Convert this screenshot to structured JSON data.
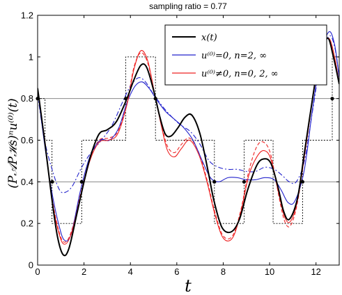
{
  "chart_data": {
    "type": "line",
    "title": "sampling ratio = 0.77",
    "xlabel": "t",
    "ylabel": "(P𝒜Pℋs)ⁿu⁽⁰⁾(t)",
    "xlim": [
      0,
      13
    ],
    "ylim": [
      0,
      1.2
    ],
    "xticks": [
      0,
      2,
      4,
      6,
      8,
      10,
      12
    ],
    "yticks": [
      0,
      0.2,
      0.4,
      0.6,
      0.8,
      1,
      1.2
    ],
    "ytick_labels": [
      "0",
      "0.2",
      "0.4",
      "0.6",
      "0.8",
      "1",
      "1.2"
    ],
    "grid": false,
    "legend_position": "top-right",
    "reference_lines": [
      0.4,
      0.8
    ],
    "series": [
      {
        "name": "x(t)",
        "color": "#000000",
        "style": "solid",
        "x": [
          0,
          0.3,
          0.6,
          0.85,
          1.1,
          1.35,
          1.7,
          2.0,
          2.3,
          2.65,
          3.0,
          3.4,
          3.85,
          4.15,
          4.45,
          4.7,
          5.0,
          5.25,
          5.5,
          5.75,
          6.05,
          6.35,
          6.65,
          7.0,
          7.35,
          7.6,
          7.95,
          8.35,
          8.7,
          9.05,
          9.45,
          9.75,
          10.05,
          10.35,
          10.6,
          10.85,
          11.2,
          11.5,
          11.85,
          12.15,
          12.5,
          12.75,
          13.0
        ],
        "y": [
          0.85,
          0.6,
          0.33,
          0.14,
          0.05,
          0.08,
          0.25,
          0.4,
          0.53,
          0.63,
          0.65,
          0.69,
          0.8,
          0.89,
          0.96,
          0.95,
          0.84,
          0.72,
          0.63,
          0.62,
          0.66,
          0.71,
          0.72,
          0.63,
          0.45,
          0.31,
          0.18,
          0.16,
          0.22,
          0.36,
          0.48,
          0.51,
          0.49,
          0.38,
          0.26,
          0.22,
          0.32,
          0.54,
          0.8,
          1.0,
          1.09,
          1.0,
          0.87
        ]
      },
      {
        "name": "u⁽⁰⁾=0, n=2, ∞",
        "color": "#2222cc",
        "style": "solid",
        "x": [
          0,
          0.3,
          0.6,
          0.9,
          1.15,
          1.45,
          1.85,
          2.25,
          2.7,
          3.1,
          3.5,
          3.85,
          4.2,
          4.5,
          4.8,
          5.1,
          5.5,
          5.9,
          6.3,
          6.7,
          7.1,
          7.45,
          7.8,
          8.2,
          8.6,
          9.0,
          9.4,
          9.8,
          10.2,
          10.5,
          10.8,
          11.1,
          11.5,
          11.85,
          12.2,
          12.55,
          12.8,
          13.0
        ],
        "y": [
          0.84,
          0.58,
          0.36,
          0.2,
          0.12,
          0.15,
          0.36,
          0.52,
          0.6,
          0.6,
          0.66,
          0.78,
          0.86,
          0.88,
          0.85,
          0.8,
          0.74,
          0.7,
          0.66,
          0.6,
          0.5,
          0.42,
          0.4,
          0.42,
          0.42,
          0.41,
          0.41,
          0.42,
          0.41,
          0.36,
          0.3,
          0.31,
          0.46,
          0.75,
          1.0,
          1.12,
          1.06,
          0.9
        ]
      },
      {
        "name": "u⁽⁰⁾≠0, n=0, 2, ∞",
        "color": "#ee2222",
        "style": "solid",
        "x": [
          0,
          0.3,
          0.6,
          0.9,
          1.15,
          1.45,
          1.85,
          2.25,
          2.65,
          3.05,
          3.45,
          3.85,
          4.15,
          4.45,
          4.75,
          5.05,
          5.35,
          5.6,
          5.9,
          6.2,
          6.55,
          6.95,
          7.3,
          7.65,
          8.0,
          8.4,
          8.75,
          9.1,
          9.45,
          9.75,
          10.05,
          10.4,
          10.65,
          10.9,
          11.2,
          11.55,
          11.9,
          12.25,
          12.55,
          12.8,
          13.0
        ],
        "y": [
          0.85,
          0.6,
          0.33,
          0.16,
          0.1,
          0.15,
          0.33,
          0.5,
          0.59,
          0.6,
          0.63,
          0.77,
          0.94,
          1.03,
          0.98,
          0.82,
          0.66,
          0.55,
          0.52,
          0.56,
          0.6,
          0.53,
          0.4,
          0.24,
          0.13,
          0.13,
          0.25,
          0.43,
          0.52,
          0.55,
          0.51,
          0.34,
          0.23,
          0.21,
          0.31,
          0.56,
          0.83,
          1.03,
          1.09,
          1.0,
          0.87
        ]
      },
      {
        "name": "",
        "color": "#2222cc",
        "style": "dashdot",
        "x": [
          0,
          0.3,
          0.65,
          0.95,
          1.2,
          1.5,
          1.9,
          2.3,
          2.75,
          3.2,
          3.65,
          4.0,
          4.35,
          4.65,
          5.0,
          5.4,
          5.8,
          6.2,
          6.6,
          7.0,
          7.4,
          7.8,
          8.2,
          8.6,
          9.0,
          9.4,
          9.8,
          10.2,
          10.55,
          10.85,
          11.15,
          11.5,
          11.85,
          12.2,
          12.55,
          12.8,
          13.0
        ],
        "y": [
          0.82,
          0.6,
          0.45,
          0.36,
          0.35,
          0.38,
          0.47,
          0.54,
          0.6,
          0.67,
          0.78,
          0.86,
          0.9,
          0.88,
          0.82,
          0.76,
          0.71,
          0.67,
          0.64,
          0.58,
          0.5,
          0.47,
          0.46,
          0.46,
          0.45,
          0.45,
          0.47,
          0.46,
          0.43,
          0.4,
          0.4,
          0.5,
          0.74,
          0.98,
          1.1,
          1.05,
          0.9
        ]
      },
      {
        "name": "",
        "color": "#ee2222",
        "style": "dashed",
        "x": [
          0,
          0.3,
          0.6,
          0.9,
          1.15,
          1.45,
          1.85,
          2.25,
          2.65,
          3.05,
          3.45,
          3.85,
          4.15,
          4.45,
          4.75,
          5.05,
          5.35,
          5.6,
          5.9,
          6.2,
          6.55,
          6.95,
          7.3,
          7.65,
          8.0,
          8.4,
          8.75,
          9.1,
          9.45,
          9.75,
          10.05,
          10.4,
          10.65,
          10.9,
          11.2,
          11.55,
          11.9,
          12.25,
          12.55,
          12.8,
          13.0
        ],
        "y": [
          0.85,
          0.61,
          0.34,
          0.17,
          0.11,
          0.16,
          0.34,
          0.51,
          0.6,
          0.61,
          0.64,
          0.78,
          0.95,
          1.02,
          0.97,
          0.82,
          0.67,
          0.57,
          0.54,
          0.58,
          0.61,
          0.54,
          0.41,
          0.25,
          0.14,
          0.14,
          0.26,
          0.45,
          0.57,
          0.59,
          0.53,
          0.33,
          0.21,
          0.19,
          0.3,
          0.56,
          0.83,
          1.03,
          1.09,
          1.0,
          0.87
        ]
      }
    ],
    "step_function": {
      "color": "#000000",
      "style": "dotted",
      "edges": [
        0,
        0.32,
        0.62,
        1.9,
        3.8,
        5.08,
        7.62,
        8.9,
        10.15,
        11.42,
        12.7,
        13.0
      ],
      "levels": [
        0.8,
        0.6,
        0.2,
        0.6,
        1.0,
        0.6,
        0.2,
        0.6,
        0.2,
        0.6,
        1.0
      ]
    },
    "sample_points": {
      "color": "#000000",
      "x": [
        0,
        0.63,
        1.9,
        3.8,
        5.08,
        7.62,
        8.9,
        11.42,
        12.7
      ],
      "y": [
        0.8,
        0.4,
        0.4,
        0.8,
        0.8,
        0.4,
        0.4,
        0.4,
        0.8
      ]
    }
  }
}
